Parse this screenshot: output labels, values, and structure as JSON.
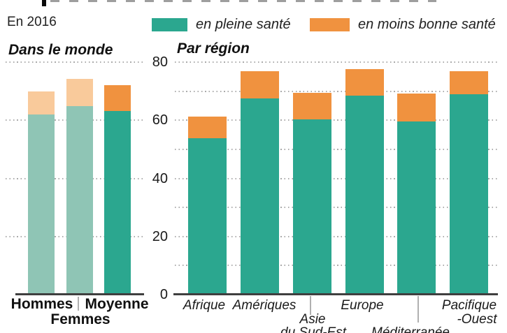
{
  "page": {
    "period_label": "En 2016"
  },
  "legend": {
    "items": [
      {
        "label": "en pleine santé",
        "color": "#2ba78f"
      },
      {
        "label": "en moins bonne santé",
        "color": "#f0923f"
      }
    ]
  },
  "colors": {
    "healthy": "#2ba78f",
    "unhealthy": "#f0923f",
    "healthy_muted": "#8fc5b5",
    "unhealthy_muted": "#f9ca9b",
    "gridline": "#ababab",
    "axis_line": "#3f3f3f"
  },
  "y_axis": {
    "ticks": [
      80,
      60,
      40,
      20,
      0
    ],
    "min": 0,
    "max": 80
  },
  "panel_titles": {
    "world": "Dans le monde",
    "region": "Par région"
  },
  "chart_data": [
    {
      "type": "bar",
      "stacked": true,
      "title": "Dans le monde",
      "categories": [
        "Hommes",
        "Femmes",
        "Moyenne"
      ],
      "series": [
        {
          "name": "en pleine santé",
          "values": [
            62.0,
            64.8,
            63.3
          ]
        },
        {
          "name": "en moins bonne santé",
          "values": [
            7.8,
            9.4,
            8.7
          ]
        }
      ],
      "totals": [
        69.8,
        74.2,
        72.0
      ],
      "ylim": [
        0,
        80
      ],
      "gridlines": [
        20,
        40,
        60,
        80
      ],
      "muted_bars": [
        true,
        true,
        false
      ],
      "legend_position": "top",
      "grid": "dotted horizontal"
    },
    {
      "type": "bar",
      "stacked": true,
      "title": "Par région",
      "categories": [
        "Afrique",
        "Amériques",
        "Asie du Sud-Est",
        "Europe",
        "Méditerranée",
        "Pacifique-Ouest"
      ],
      "series": [
        {
          "name": "en pleine santé",
          "values": [
            53.8,
            67.5,
            60.4,
            68.4,
            59.7,
            68.9
          ]
        },
        {
          "name": "en moins bonne santé",
          "values": [
            7.4,
            9.3,
            9.1,
            9.1,
            9.4,
            8.0
          ]
        }
      ],
      "totals": [
        61.2,
        76.8,
        69.5,
        77.5,
        69.1,
        76.9
      ],
      "ylim": [
        0,
        80
      ],
      "gridlines": [
        10,
        20,
        30,
        40,
        50,
        60,
        70,
        80
      ],
      "muted_bars": [
        false,
        false,
        false,
        false,
        false,
        false
      ],
      "legend_position": "top",
      "grid": "dotted horizontal"
    }
  ],
  "world_labels": {
    "hommes": "Hommes",
    "femmes": "Femmes",
    "moyenne": "Moyenne"
  },
  "region_labels": {
    "afrique": "Afrique",
    "ameriques": "Amériques",
    "asie_line1": "Asie",
    "asie_line2": "du Sud-Est",
    "europe": "Europe",
    "mediterranee": "Méditerranée",
    "pacifique_line1": "Pacifique",
    "pacifique_line2": "-Ouest"
  }
}
